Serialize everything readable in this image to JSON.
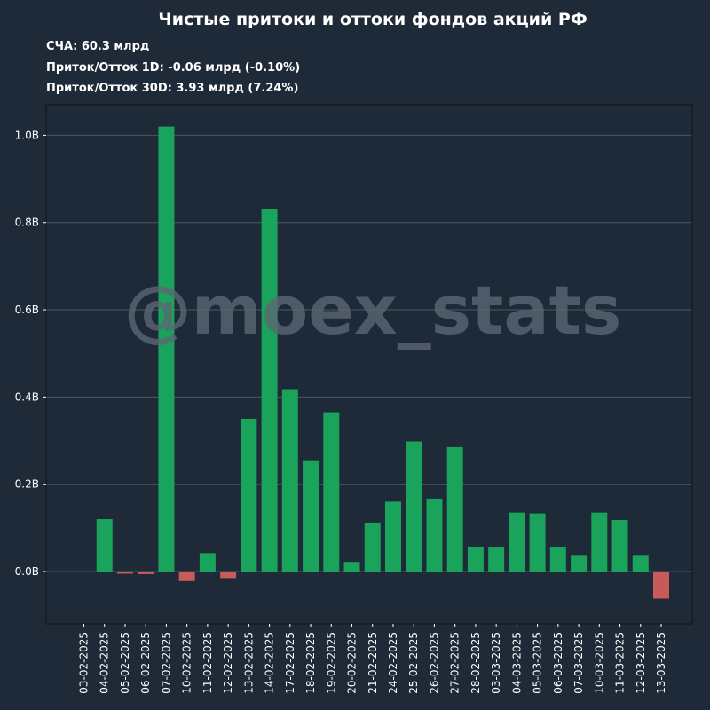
{
  "header": {
    "title": "Чистые притоки и оттоки фондов акций РФ",
    "stat_lines": [
      "СЧА: 60.3 млрд",
      "Приток/Отток 1D: -0.06 млрд (-0.10%)",
      "Приток/Отток 30D: 3.93 млрд (7.24%)"
    ]
  },
  "watermark": "@moex_stats",
  "colors": {
    "background": "#1e2a38",
    "positive": "#1aa35a",
    "negative": "#c85a5a",
    "grid": "#4a5866",
    "text": "#ffffff"
  },
  "chart_data": {
    "type": "bar",
    "title": "Чистые притоки и оттоки фондов акций РФ",
    "xlabel": "",
    "ylabel": "",
    "ylim": [
      -0.12,
      1.07
    ],
    "yticks": [
      0.0,
      0.2,
      0.4,
      0.6,
      0.8,
      1.0
    ],
    "ytick_labels": [
      "0.0B",
      "0.2B",
      "0.4B",
      "0.6B",
      "0.8B",
      "1.0B"
    ],
    "grid": "horizontal",
    "categories": [
      "03-02-2025",
      "04-02-2025",
      "05-02-2025",
      "06-02-2025",
      "07-02-2025",
      "10-02-2025",
      "11-02-2025",
      "12-02-2025",
      "13-02-2025",
      "14-02-2025",
      "17-02-2025",
      "18-02-2025",
      "19-02-2025",
      "20-02-2025",
      "21-02-2025",
      "24-02-2025",
      "25-02-2025",
      "26-02-2025",
      "27-02-2025",
      "28-02-2025",
      "03-03-2025",
      "04-03-2025",
      "05-03-2025",
      "06-03-2025",
      "07-03-2025",
      "10-03-2025",
      "11-03-2025",
      "12-03-2025",
      "13-03-2025"
    ],
    "values": [
      -0.002,
      0.12,
      -0.005,
      -0.006,
      1.02,
      -0.022,
      0.042,
      -0.015,
      0.35,
      0.83,
      0.418,
      0.255,
      0.365,
      0.022,
      0.112,
      0.16,
      0.298,
      0.167,
      0.285,
      0.057,
      0.057,
      0.135,
      0.133,
      0.057,
      0.038,
      0.135,
      0.118,
      0.038,
      -0.062
    ]
  }
}
